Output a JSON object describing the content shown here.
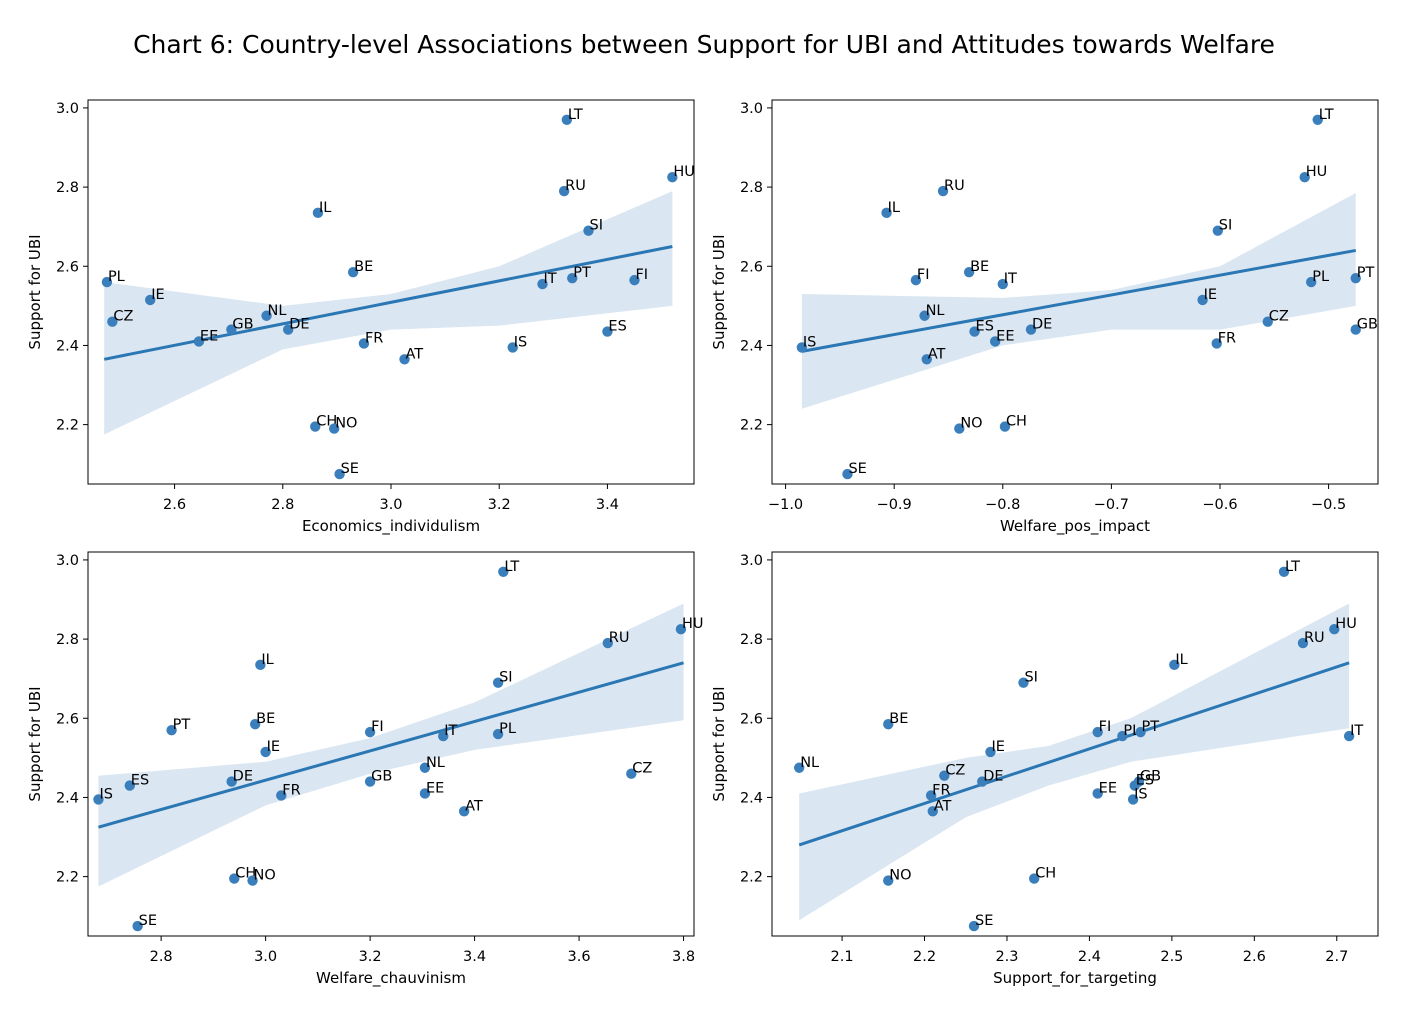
{
  "title": "Chart 6: Country-level Associations between Support for UBI and Attitudes towards Welfare",
  "colors": {
    "point": "#3a7fbb",
    "line": "#2a77b4",
    "band": "#dae6f2",
    "axis": "#000000"
  },
  "chart_data": [
    {
      "type": "scatter",
      "xlabel": "Economics_individulism",
      "ylabel": "Support for UBI",
      "xlim": [
        2.44,
        3.56
      ],
      "ylim": [
        2.05,
        3.02
      ],
      "xticks": [
        2.6,
        2.8,
        3.0,
        3.2,
        3.4
      ],
      "xtick_labels": [
        "2.6",
        "2.8",
        "3.0",
        "3.2",
        "3.4"
      ],
      "yticks": [
        2.2,
        2.4,
        2.6,
        2.8,
        3.0
      ],
      "ytick_labels": [
        "2.2",
        "2.4",
        "2.6",
        "2.8",
        "3.0"
      ],
      "regression": {
        "x": [
          2.47,
          3.52
        ],
        "y": [
          2.365,
          2.65
        ]
      },
      "ci_band": {
        "x": [
          2.47,
          2.8,
          3.0,
          3.2,
          3.52
        ],
        "upper": [
          2.56,
          2.5,
          2.53,
          2.6,
          2.79
        ],
        "lower": [
          2.175,
          2.39,
          2.44,
          2.45,
          2.5
        ]
      },
      "points": [
        {
          "label": "LT",
          "x": 3.325,
          "y": 2.97
        },
        {
          "label": "HU",
          "x": 3.52,
          "y": 2.825
        },
        {
          "label": "RU",
          "x": 3.32,
          "y": 2.79
        },
        {
          "label": "IL",
          "x": 2.865,
          "y": 2.735
        },
        {
          "label": "SI",
          "x": 3.365,
          "y": 2.69
        },
        {
          "label": "PL",
          "x": 2.475,
          "y": 2.56
        },
        {
          "label": "BE",
          "x": 2.93,
          "y": 2.585
        },
        {
          "label": "IE",
          "x": 2.555,
          "y": 2.515
        },
        {
          "label": "IT",
          "x": 3.28,
          "y": 2.555
        },
        {
          "label": "PT",
          "x": 3.335,
          "y": 2.57
        },
        {
          "label": "FI",
          "x": 3.45,
          "y": 2.565
        },
        {
          "label": "CZ",
          "x": 2.485,
          "y": 2.46
        },
        {
          "label": "NL",
          "x": 2.77,
          "y": 2.475
        },
        {
          "label": "GB",
          "x": 2.705,
          "y": 2.44
        },
        {
          "label": "DE",
          "x": 2.81,
          "y": 2.44
        },
        {
          "label": "EE",
          "x": 2.645,
          "y": 2.41
        },
        {
          "label": "FR",
          "x": 2.95,
          "y": 2.405
        },
        {
          "label": "ES",
          "x": 3.4,
          "y": 2.435
        },
        {
          "label": "IS",
          "x": 3.225,
          "y": 2.395
        },
        {
          "label": "AT",
          "x": 3.025,
          "y": 2.365
        },
        {
          "label": "CH",
          "x": 2.86,
          "y": 2.195
        },
        {
          "label": "NO",
          "x": 2.895,
          "y": 2.19
        },
        {
          "label": "SE",
          "x": 2.905,
          "y": 2.075
        }
      ]
    },
    {
      "type": "scatter",
      "xlabel": "Welfare_pos_impact",
      "ylabel": "Support for UBI",
      "xlim": [
        -1.0125,
        -0.4545
      ],
      "ylim": [
        2.05,
        3.02
      ],
      "xticks": [
        -1.0,
        -0.9,
        -0.8,
        -0.7,
        -0.6,
        -0.5
      ],
      "xtick_labels": [
        "−1.0",
        "−0.9",
        "−0.8",
        "−0.7",
        "−0.6",
        "−0.5"
      ],
      "yticks": [
        2.2,
        2.4,
        2.6,
        2.8,
        3.0
      ],
      "ytick_labels": [
        "2.2",
        "2.4",
        "2.6",
        "2.8",
        "3.0"
      ],
      "regression": {
        "x": [
          -0.985,
          -0.475
        ],
        "y": [
          2.385,
          2.64
        ]
      },
      "ci_band": {
        "x": [
          -0.985,
          -0.8,
          -0.7,
          -0.6,
          -0.475
        ],
        "upper": [
          2.53,
          2.52,
          2.54,
          2.6,
          2.785
        ],
        "lower": [
          2.24,
          2.4,
          2.44,
          2.44,
          2.5
        ]
      },
      "points": [
        {
          "label": "LT",
          "x": -0.51,
          "y": 2.97
        },
        {
          "label": "HU",
          "x": -0.522,
          "y": 2.825
        },
        {
          "label": "RU",
          "x": -0.855,
          "y": 2.79
        },
        {
          "label": "IL",
          "x": -0.907,
          "y": 2.735
        },
        {
          "label": "SI",
          "x": -0.602,
          "y": 2.69
        },
        {
          "label": "FI",
          "x": -0.88,
          "y": 2.565
        },
        {
          "label": "BE",
          "x": -0.831,
          "y": 2.585
        },
        {
          "label": "IT",
          "x": -0.8,
          "y": 2.555
        },
        {
          "label": "PT",
          "x": -0.475,
          "y": 2.57
        },
        {
          "label": "PL",
          "x": -0.516,
          "y": 2.56
        },
        {
          "label": "IE",
          "x": -0.616,
          "y": 2.515
        },
        {
          "label": "NL",
          "x": -0.872,
          "y": 2.475
        },
        {
          "label": "CZ",
          "x": -0.556,
          "y": 2.46
        },
        {
          "label": "GB",
          "x": -0.475,
          "y": 2.44
        },
        {
          "label": "ES",
          "x": -0.826,
          "y": 2.435
        },
        {
          "label": "DE",
          "x": -0.774,
          "y": 2.44
        },
        {
          "label": "EE",
          "x": -0.807,
          "y": 2.41
        },
        {
          "label": "FR",
          "x": -0.603,
          "y": 2.405
        },
        {
          "label": "IS",
          "x": -0.985,
          "y": 2.395
        },
        {
          "label": "AT",
          "x": -0.87,
          "y": 2.365
        },
        {
          "label": "NO",
          "x": -0.84,
          "y": 2.19
        },
        {
          "label": "CH",
          "x": -0.798,
          "y": 2.195
        },
        {
          "label": "SE",
          "x": -0.943,
          "y": 2.075
        }
      ]
    },
    {
      "type": "scatter",
      "xlabel": "Welfare_chauvinism",
      "ylabel": "Support for UBI",
      "xlim": [
        2.66,
        3.82
      ],
      "ylim": [
        2.05,
        3.02
      ],
      "xticks": [
        2.8,
        3.0,
        3.2,
        3.4,
        3.6,
        3.8
      ],
      "xtick_labels": [
        "2.8",
        "3.0",
        "3.2",
        "3.4",
        "3.6",
        "3.8"
      ],
      "yticks": [
        2.2,
        2.4,
        2.6,
        2.8,
        3.0
      ],
      "ytick_labels": [
        "2.2",
        "2.4",
        "2.6",
        "2.8",
        "3.0"
      ],
      "regression": {
        "x": [
          2.68,
          3.8
        ],
        "y": [
          2.325,
          2.74
        ]
      },
      "ci_band": {
        "x": [
          2.68,
          3.0,
          3.2,
          3.4,
          3.8
        ],
        "upper": [
          2.455,
          2.49,
          2.55,
          2.64,
          2.89
        ],
        "lower": [
          2.175,
          2.38,
          2.46,
          2.52,
          2.595
        ]
      },
      "points": [
        {
          "label": "LT",
          "x": 3.455,
          "y": 2.97
        },
        {
          "label": "HU",
          "x": 3.795,
          "y": 2.825
        },
        {
          "label": "RU",
          "x": 3.655,
          "y": 2.79
        },
        {
          "label": "IL",
          "x": 2.99,
          "y": 2.735
        },
        {
          "label": "SI",
          "x": 3.445,
          "y": 2.69
        },
        {
          "label": "PT",
          "x": 2.82,
          "y": 2.57
        },
        {
          "label": "BE",
          "x": 2.98,
          "y": 2.585
        },
        {
          "label": "FI",
          "x": 3.2,
          "y": 2.565
        },
        {
          "label": "IT",
          "x": 3.34,
          "y": 2.555
        },
        {
          "label": "PL",
          "x": 3.445,
          "y": 2.56
        },
        {
          "label": "IE",
          "x": 3.0,
          "y": 2.515
        },
        {
          "label": "NL",
          "x": 3.305,
          "y": 2.475
        },
        {
          "label": "CZ",
          "x": 3.7,
          "y": 2.46
        },
        {
          "label": "DE",
          "x": 2.935,
          "y": 2.44
        },
        {
          "label": "GB",
          "x": 3.2,
          "y": 2.44
        },
        {
          "label": "ES",
          "x": 2.74,
          "y": 2.43
        },
        {
          "label": "IS",
          "x": 2.68,
          "y": 2.395
        },
        {
          "label": "FR",
          "x": 3.03,
          "y": 2.405
        },
        {
          "label": "EE",
          "x": 3.305,
          "y": 2.41
        },
        {
          "label": "AT",
          "x": 3.38,
          "y": 2.365
        },
        {
          "label": "CH",
          "x": 2.94,
          "y": 2.195
        },
        {
          "label": "NO",
          "x": 2.975,
          "y": 2.19
        },
        {
          "label": "SE",
          "x": 2.755,
          "y": 2.075
        }
      ]
    },
    {
      "type": "scatter",
      "xlabel": "Support_for_targeting",
      "ylabel": "Support for UBI",
      "xlim": [
        2.015,
        2.75
      ],
      "ylim": [
        2.05,
        3.02
      ],
      "xticks": [
        2.1,
        2.2,
        2.3,
        2.4,
        2.5,
        2.6,
        2.7
      ],
      "xtick_labels": [
        "2.1",
        "2.2",
        "2.3",
        "2.4",
        "2.5",
        "2.6",
        "2.7"
      ],
      "yticks": [
        2.2,
        2.4,
        2.6,
        2.8,
        3.0
      ],
      "ytick_labels": [
        "2.2",
        "2.4",
        "2.6",
        "2.8",
        "3.0"
      ],
      "regression": {
        "x": [
          2.048,
          2.715
        ],
        "y": [
          2.28,
          2.74
        ]
      },
      "ci_band": {
        "x": [
          2.048,
          2.25,
          2.35,
          2.45,
          2.715
        ],
        "upper": [
          2.41,
          2.5,
          2.53,
          2.6,
          2.89
        ],
        "lower": [
          2.09,
          2.35,
          2.43,
          2.49,
          2.575
        ]
      },
      "points": [
        {
          "label": "LT",
          "x": 2.636,
          "y": 2.97
        },
        {
          "label": "HU",
          "x": 2.697,
          "y": 2.825
        },
        {
          "label": "RU",
          "x": 2.659,
          "y": 2.79
        },
        {
          "label": "IL",
          "x": 2.503,
          "y": 2.735
        },
        {
          "label": "SI",
          "x": 2.32,
          "y": 2.69
        },
        {
          "label": "BE",
          "x": 2.156,
          "y": 2.585
        },
        {
          "label": "FI",
          "x": 2.41,
          "y": 2.565
        },
        {
          "label": "PL",
          "x": 2.44,
          "y": 2.555
        },
        {
          "label": "PT",
          "x": 2.462,
          "y": 2.565
        },
        {
          "label": "IT",
          "x": 2.715,
          "y": 2.555
        },
        {
          "label": "IE",
          "x": 2.28,
          "y": 2.515
        },
        {
          "label": "NL",
          "x": 2.048,
          "y": 2.475
        },
        {
          "label": "CZ",
          "x": 2.224,
          "y": 2.455
        },
        {
          "label": "DE",
          "x": 2.27,
          "y": 2.44
        },
        {
          "label": "GB",
          "x": 2.46,
          "y": 2.44
        },
        {
          "label": "ES",
          "x": 2.455,
          "y": 2.43
        },
        {
          "label": "FR",
          "x": 2.208,
          "y": 2.405
        },
        {
          "label": "EE",
          "x": 2.41,
          "y": 2.41
        },
        {
          "label": "IS",
          "x": 2.453,
          "y": 2.395
        },
        {
          "label": "AT",
          "x": 2.21,
          "y": 2.365
        },
        {
          "label": "CH",
          "x": 2.333,
          "y": 2.195
        },
        {
          "label": "NO",
          "x": 2.156,
          "y": 2.19
        },
        {
          "label": "SE",
          "x": 2.26,
          "y": 2.075
        }
      ]
    }
  ]
}
